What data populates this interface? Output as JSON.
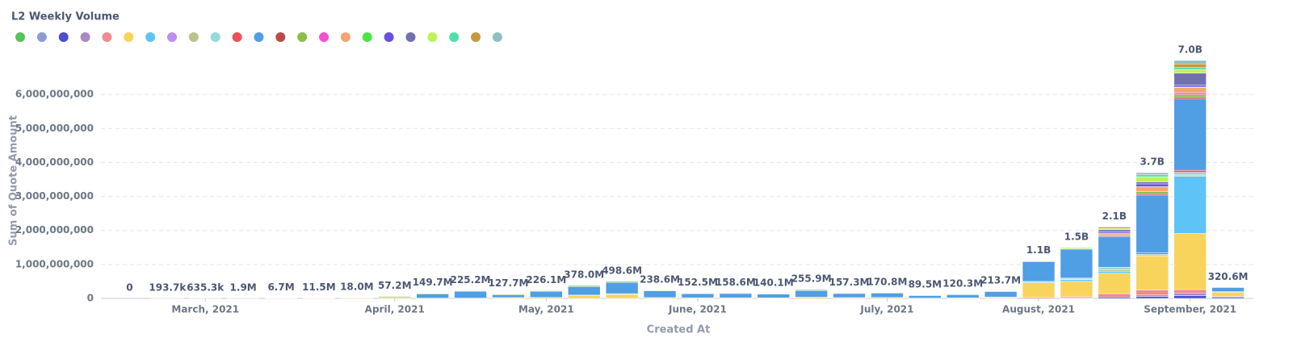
{
  "chart_data": {
    "type": "stacked-bar",
    "title": "L2 Weekly Volume",
    "x_label": "Created At",
    "y_label": "Sum of Quote Amount",
    "categories": [
      null,
      null,
      "March, 2021",
      null,
      null,
      null,
      null,
      "April, 2021",
      null,
      null,
      null,
      "May, 2021",
      null,
      null,
      null,
      "June, 2021",
      null,
      null,
      null,
      null,
      "July, 2021",
      null,
      null,
      null,
      "August, 2021",
      null,
      null,
      null,
      "September, 2021",
      null
    ],
    "ylim": [
      0,
      7000000000
    ],
    "yticks": [
      0,
      {
        "value": 1000000000,
        "label": "1,000,000,000"
      },
      {
        "value": 2000000000,
        "label": "2,000,000,000"
      },
      {
        "value": 3000000000,
        "label": "3,000,000,000"
      },
      {
        "value": 4000000000,
        "label": "4,000,000,000"
      },
      {
        "value": 5000000000,
        "label": "5,000,000,000"
      },
      {
        "value": 6000000000,
        "label": "6,000,000,000"
      }
    ],
    "grid": true,
    "totals": {
      "values": [
        0,
        193700,
        635300,
        1900000,
        6700000,
        11500000,
        18000000,
        57200000,
        149700000,
        225200000,
        127700000,
        226100000,
        378000000,
        498600000,
        238600000,
        152500000,
        158600000,
        140100000,
        255900000,
        157300000,
        170800000,
        89500000,
        120300000,
        213700000,
        1100000000,
        1500000000,
        2100000000,
        3700000000,
        7000000000,
        320600000
      ],
      "value_labels": [
        "0",
        "193.7k",
        "635.3k",
        "1.9M",
        "6.7M",
        "11.5M",
        "18.0M",
        "57.2M",
        "149.7M",
        "225.2M",
        "127.7M",
        "226.1M",
        "378.0M",
        "498.6M",
        "238.6M",
        "152.5M",
        "158.6M",
        "140.1M",
        "255.9M",
        "157.3M",
        "170.8M",
        "89.5M",
        "120.3M",
        "213.7M",
        "1.1B",
        "1.5B",
        "2.1B",
        "3.7B",
        "7.0B",
        "320.6M"
      ]
    },
    "series": [
      {
        "color": "#56c35e",
        "values": [
          0,
          0,
          0,
          0,
          0,
          0,
          0,
          0,
          0,
          0,
          0,
          0,
          0,
          0,
          0,
          0,
          0,
          0,
          0,
          0,
          0,
          0,
          0,
          0,
          0,
          0,
          0,
          0,
          0,
          0
        ]
      },
      {
        "color": "#8a9ed4",
        "values": [
          0,
          0,
          0,
          0,
          0,
          0,
          0,
          0,
          0,
          0,
          0,
          0,
          0,
          0,
          0,
          0,
          0,
          0,
          0,
          0,
          0,
          0,
          0,
          0,
          0,
          20000000,
          0,
          0,
          0,
          0
        ]
      },
      {
        "color": "#4b4ed0",
        "values": [
          0,
          0,
          0,
          0,
          0,
          0,
          0,
          0,
          0,
          0,
          0,
          0,
          0,
          0,
          0,
          0,
          0,
          0,
          0,
          0,
          0,
          0,
          0,
          0,
          0,
          0,
          40000000,
          60000000,
          80000000,
          40000000
        ]
      },
      {
        "color": "#a989c5",
        "values": [
          0,
          0,
          0,
          0,
          0,
          0,
          0,
          0,
          0,
          0,
          0,
          0,
          0,
          0,
          0,
          0,
          0,
          0,
          0,
          0,
          0,
          0,
          0,
          0,
          0,
          0,
          0,
          40000000,
          80000000,
          0
        ]
      },
      {
        "color": "#ef8c8c",
        "values": [
          0,
          0,
          0,
          0,
          0,
          0,
          0,
          0,
          0,
          0,
          0,
          0,
          0,
          0,
          0,
          0,
          0,
          0,
          0,
          0,
          0,
          0,
          0,
          13700000,
          30000000,
          30000000,
          100000000,
          150000000,
          100000000,
          20000000
        ]
      },
      {
        "color": "#f9d45c",
        "values": [
          0,
          193700,
          635300,
          1900000,
          6700000,
          11500000,
          18000000,
          27200000,
          9700000,
          10200000,
          25000000,
          30000000,
          80000000,
          120000000,
          25000000,
          20000000,
          20000000,
          18000000,
          40000000,
          25000000,
          28000000,
          10000000,
          15000000,
          30000000,
          430000000,
          450000000,
          600000000,
          1000000000,
          1650000000,
          120000000
        ]
      },
      {
        "color": "#5ec4f7",
        "values": [
          0,
          0,
          0,
          0,
          0,
          0,
          0,
          0,
          0,
          0,
          0,
          0,
          18000000,
          20000000,
          0,
          0,
          0,
          0,
          0,
          0,
          0,
          0,
          0,
          0,
          20000000,
          50000000,
          50000000,
          0,
          1680000000,
          20600000
        ]
      },
      {
        "color": "#c08cf0",
        "values": [
          0,
          0,
          0,
          0,
          0,
          0,
          0,
          0,
          0,
          0,
          0,
          0,
          0,
          0,
          0,
          0,
          0,
          0,
          0,
          0,
          0,
          0,
          0,
          0,
          0,
          0,
          0,
          0,
          0,
          0
        ]
      },
      {
        "color": "#b8c48b",
        "values": [
          0,
          0,
          0,
          0,
          0,
          0,
          0,
          0,
          0,
          0,
          0,
          0,
          0,
          0,
          0,
          0,
          0,
          0,
          0,
          0,
          0,
          0,
          0,
          0,
          0,
          20000000,
          50000000,
          0,
          40000000,
          0
        ]
      },
      {
        "color": "#98d9d9",
        "values": [
          0,
          0,
          0,
          0,
          0,
          0,
          0,
          0,
          0,
          0,
          0,
          0,
          0,
          0,
          0,
          0,
          0,
          0,
          0,
          0,
          0,
          0,
          0,
          0,
          0,
          30000000,
          80000000,
          50000000,
          80000000,
          0
        ]
      },
      {
        "color": "#ed4f5a",
        "values": [
          0,
          0,
          0,
          0,
          0,
          0,
          0,
          0,
          0,
          0,
          0,
          0,
          0,
          0,
          0,
          0,
          0,
          0,
          0,
          0,
          0,
          0,
          0,
          0,
          20000000,
          0,
          0,
          40000000,
          60000000,
          0
        ]
      },
      {
        "color": "#509ee3",
        "values": [
          0,
          0,
          0,
          0,
          0,
          0,
          0,
          0,
          120000000,
          200000000,
          80000000,
          180000000,
          250000000,
          330000000,
          200000000,
          120000000,
          125000000,
          110000000,
          190000000,
          120000000,
          130000000,
          75000000,
          95000000,
          160000000,
          580000000,
          850000000,
          900000000,
          1700000000,
          2100000000,
          120000000
        ]
      },
      {
        "color": "#b84c4c",
        "values": [
          0,
          0,
          0,
          0,
          0,
          0,
          0,
          0,
          0,
          0,
          0,
          0,
          0,
          0,
          0,
          0,
          0,
          0,
          0,
          0,
          0,
          0,
          0,
          0,
          0,
          0,
          30000000,
          40000000,
          50000000,
          0
        ]
      },
      {
        "color": "#88bf4d",
        "values": [
          0,
          0,
          0,
          0,
          0,
          0,
          0,
          30000000,
          20000000,
          15000000,
          22700000,
          16100000,
          30000000,
          28600000,
          13600000,
          12500000,
          13600000,
          12100000,
          25900000,
          12300000,
          12800000,
          4500000,
          10300000,
          10000000,
          20000000,
          20000000,
          20000000,
          60000000,
          80000000,
          0
        ]
      },
      {
        "color": "#f74fd3",
        "values": [
          0,
          0,
          0,
          0,
          0,
          0,
          0,
          0,
          0,
          0,
          0,
          0,
          0,
          0,
          0,
          0,
          0,
          0,
          0,
          0,
          0,
          0,
          0,
          0,
          0,
          0,
          0,
          0,
          50000000,
          0
        ]
      },
      {
        "color": "#f4a571",
        "values": [
          0,
          0,
          0,
          0,
          0,
          0,
          0,
          0,
          0,
          0,
          0,
          0,
          0,
          0,
          0,
          0,
          0,
          0,
          0,
          0,
          0,
          0,
          0,
          0,
          0,
          0,
          50000000,
          150000000,
          150000000,
          0
        ]
      },
      {
        "color": "#4ee34b",
        "values": [
          0,
          0,
          0,
          0,
          0,
          0,
          0,
          0,
          0,
          0,
          0,
          0,
          0,
          0,
          0,
          0,
          0,
          0,
          0,
          0,
          0,
          0,
          0,
          0,
          0,
          0,
          0,
          0,
          20000000,
          0
        ]
      },
      {
        "color": "#6a4fe0",
        "values": [
          0,
          0,
          0,
          0,
          0,
          0,
          0,
          0,
          0,
          0,
          0,
          0,
          0,
          0,
          0,
          0,
          0,
          0,
          0,
          0,
          0,
          0,
          0,
          0,
          0,
          0,
          40000000,
          80000000,
          60000000,
          0
        ]
      },
      {
        "color": "#7172ad",
        "values": [
          0,
          0,
          0,
          0,
          0,
          0,
          0,
          0,
          0,
          0,
          0,
          0,
          0,
          0,
          0,
          0,
          0,
          0,
          0,
          0,
          0,
          0,
          0,
          0,
          0,
          0,
          60000000,
          60000000,
          350000000,
          0
        ]
      },
      {
        "color": "#bdf25a",
        "values": [
          0,
          0,
          0,
          0,
          0,
          0,
          0,
          0,
          0,
          0,
          0,
          0,
          0,
          0,
          0,
          0,
          0,
          0,
          0,
          0,
          0,
          0,
          0,
          0,
          0,
          30000000,
          40000000,
          150000000,
          100000000,
          0
        ]
      },
      {
        "color": "#4fe0a8",
        "values": [
          0,
          0,
          0,
          0,
          0,
          0,
          0,
          0,
          0,
          0,
          0,
          0,
          0,
          0,
          0,
          0,
          0,
          0,
          0,
          0,
          0,
          0,
          0,
          0,
          0,
          0,
          0,
          60000000,
          60000000,
          0
        ]
      },
      {
        "color": "#c49a3f",
        "values": [
          0,
          0,
          0,
          0,
          0,
          0,
          0,
          0,
          0,
          0,
          0,
          0,
          0,
          0,
          0,
          0,
          0,
          0,
          0,
          0,
          0,
          0,
          0,
          0,
          0,
          0,
          40000000,
          0,
          110000000,
          0
        ]
      },
      {
        "color": "#8ebfc4",
        "values": [
          0,
          0,
          0,
          0,
          0,
          0,
          0,
          0,
          0,
          0,
          0,
          0,
          0,
          0,
          0,
          0,
          0,
          0,
          0,
          0,
          0,
          0,
          0,
          0,
          0,
          0,
          0,
          60000000,
          100000000,
          0
        ]
      }
    ]
  }
}
